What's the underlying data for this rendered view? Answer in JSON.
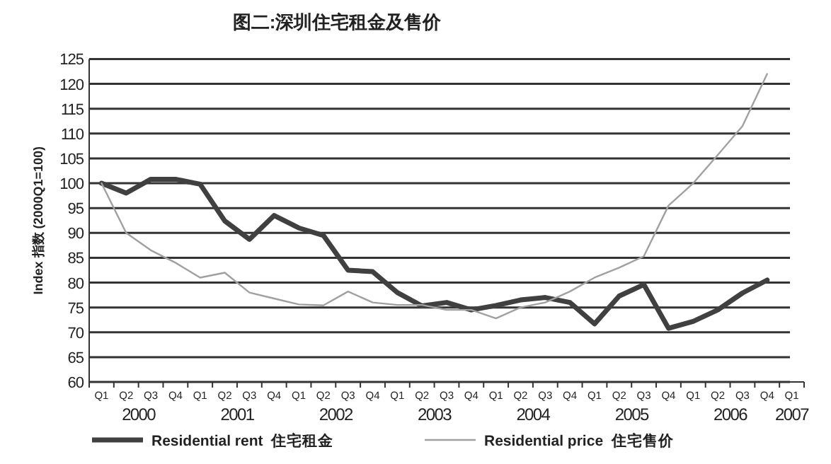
{
  "chart_data": {
    "type": "line",
    "title": "图二:深圳住宅租金及售价",
    "ylabel": "Index 指数 (2000Q1=100)",
    "categories": [
      "Q1",
      "Q2",
      "Q3",
      "Q4",
      "Q1",
      "Q2",
      "Q3",
      "Q4",
      "Q1",
      "Q2",
      "Q3",
      "Q4",
      "Q1",
      "Q2",
      "Q3",
      "Q4",
      "Q1",
      "Q2",
      "Q3",
      "Q4",
      "Q1",
      "Q2",
      "Q3",
      "Q4",
      "Q1",
      "Q2",
      "Q3",
      "Q4",
      "Q1"
    ],
    "annotations": [
      "2000",
      "2001",
      "2002",
      "2003",
      "2004",
      "2005",
      "2006",
      "2007"
    ],
    "series": [
      {
        "name": "Residential rent  住宅租金",
        "color": "#404040",
        "values": [
          100,
          98,
          100.8,
          100.8,
          99.8,
          92.4,
          88.7,
          93.5,
          91,
          89.5,
          82.5,
          82.2,
          78,
          75.3,
          76,
          74.5,
          75.4,
          76.5,
          77,
          76,
          71.7,
          77.3,
          79.6,
          70.8,
          72.2,
          74.5,
          77.9,
          80.5,
          null
        ]
      },
      {
        "name": "Residential price  住宅售价",
        "color": "#a0a0a0",
        "values": [
          100,
          90,
          86.5,
          84,
          81,
          82,
          78,
          76.8,
          75.6,
          75.4,
          78.2,
          76,
          75.5,
          75.5,
          74.5,
          74.5,
          72.8,
          75,
          76,
          78.2,
          81,
          83,
          85.3,
          95.5,
          100,
          105.7,
          111.5,
          122,
          null
        ]
      }
    ],
    "ylim": [
      60,
      125
    ],
    "yticks": [
      60,
      65,
      70,
      75,
      80,
      85,
      90,
      95,
      100,
      105,
      110,
      115,
      120,
      125
    ],
    "grid": "y",
    "legend": "bottom",
    "marker": "none",
    "line_style": "solid"
  }
}
